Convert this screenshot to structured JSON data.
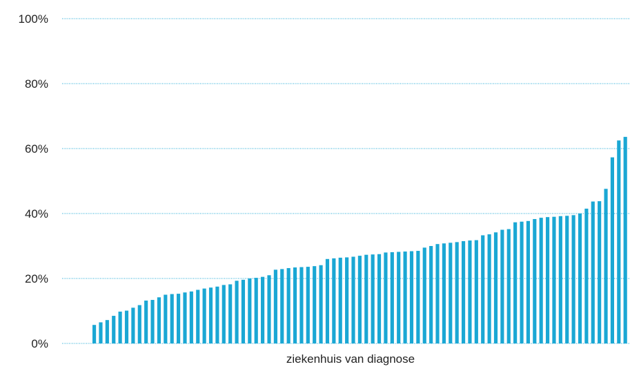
{
  "chart_data": {
    "type": "bar",
    "xlabel": "ziekenhuis van diagnose",
    "ylabel": "",
    "ylim": [
      0,
      100
    ],
    "yticks": [
      0,
      20,
      40,
      60,
      80,
      100
    ],
    "ytick_labels": [
      "0%",
      "20%",
      "40%",
      "60%",
      "80%",
      "100%"
    ],
    "grid": true,
    "bar_color": "#1aa7d4",
    "values": [
      5.7,
      6.5,
      7.2,
      8.5,
      9.8,
      10.1,
      11.0,
      11.8,
      13.2,
      13.4,
      14.2,
      15.0,
      15.2,
      15.3,
      15.7,
      16.0,
      16.5,
      16.9,
      17.2,
      17.5,
      18.0,
      18.2,
      19.3,
      19.6,
      20.0,
      20.2,
      20.5,
      21.0,
      22.7,
      22.9,
      23.2,
      23.4,
      23.5,
      23.6,
      23.8,
      24.1,
      26.0,
      26.2,
      26.4,
      26.5,
      26.7,
      27.0,
      27.3,
      27.4,
      27.5,
      28.0,
      28.1,
      28.2,
      28.3,
      28.4,
      28.5,
      29.5,
      30.0,
      30.6,
      30.8,
      31.0,
      31.2,
      31.5,
      31.7,
      31.8,
      33.3,
      33.6,
      34.2,
      35.0,
      35.2,
      37.3,
      37.5,
      37.7,
      38.3,
      38.7,
      38.9,
      39.0,
      39.2,
      39.3,
      39.5,
      40.0,
      41.5,
      43.7,
      43.8,
      47.6,
      57.3,
      62.5,
      63.6
    ]
  }
}
